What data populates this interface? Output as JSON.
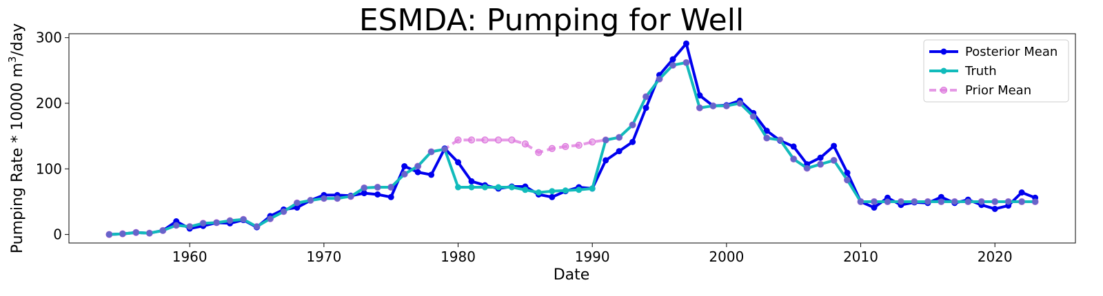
{
  "chart_data": {
    "type": "line",
    "title": "ESMDA: Pumping for Well",
    "xlabel": "Date",
    "ylabel_main": "Pumping Rate * 10000 m",
    "ylabel_sup": "3",
    "ylabel_tail": "/day",
    "xlim": [
      1951,
      2026
    ],
    "ylim": [
      -13,
      306
    ],
    "xticks": [
      1960,
      1970,
      1980,
      1990,
      2000,
      2010,
      2020
    ],
    "yticks": [
      0,
      100,
      200,
      300
    ],
    "legend_position": "top-right",
    "grid": false,
    "x": [
      1954,
      1955,
      1956,
      1957,
      1958,
      1959,
      1960,
      1961,
      1962,
      1963,
      1964,
      1965,
      1966,
      1967,
      1968,
      1969,
      1970,
      1971,
      1972,
      1973,
      1974,
      1975,
      1976,
      1977,
      1978,
      1979,
      1980,
      1981,
      1982,
      1983,
      1984,
      1985,
      1986,
      1987,
      1988,
      1989,
      1990,
      1991,
      1992,
      1993,
      1994,
      1995,
      1996,
      1997,
      1998,
      1999,
      2000,
      2001,
      2002,
      2003,
      2004,
      2005,
      2006,
      2007,
      2008,
      2009,
      2010,
      2011,
      2012,
      2013,
      2014,
      2015,
      2016,
      2017,
      2018,
      2019,
      2020,
      2021,
      2022,
      2023
    ],
    "series": [
      {
        "name": "Prior Mean",
        "color": "#dd77dd",
        "style": "dashed",
        "values": [
          0,
          1,
          3,
          2,
          6,
          14,
          12,
          17,
          18,
          21,
          23,
          12,
          24,
          35,
          48,
          52,
          55,
          55,
          58,
          71,
          72,
          72,
          92,
          104,
          126,
          130,
          144,
          144,
          144,
          144,
          144,
          138,
          125,
          131,
          134,
          136,
          141,
          144,
          148,
          167,
          210,
          237,
          258,
          262,
          193,
          196,
          196,
          200,
          180,
          147,
          144,
          115,
          101,
          107,
          113,
          83,
          50,
          50,
          50,
          50,
          50,
          50,
          50,
          50,
          50,
          50,
          50,
          50,
          50,
          50
        ]
      },
      {
        "name": "Posterior Mean",
        "color": "#0000ee",
        "style": "solid",
        "values": [
          0,
          1,
          3,
          2,
          6,
          20,
          9,
          13,
          18,
          17,
          22,
          11,
          28,
          38,
          41,
          52,
          60,
          60,
          59,
          63,
          61,
          57,
          104,
          95,
          91,
          131,
          110,
          81,
          75,
          70,
          73,
          73,
          61,
          57,
          66,
          72,
          70,
          113,
          127,
          141,
          193,
          243,
          267,
          291,
          212,
          196,
          197,
          204,
          185,
          158,
          143,
          134,
          107,
          117,
          135,
          94,
          50,
          41,
          56,
          45,
          49,
          48,
          57,
          48,
          53,
          45,
          39,
          44,
          64,
          56
        ]
      },
      {
        "name": "Truth",
        "color": "#11bbbb",
        "style": "solid",
        "values": [
          0,
          1,
          3,
          2,
          6,
          14,
          12,
          17,
          18,
          21,
          23,
          12,
          24,
          35,
          48,
          52,
          55,
          55,
          58,
          71,
          72,
          72,
          92,
          104,
          126,
          130,
          72,
          72,
          72,
          72,
          72,
          68,
          64,
          66,
          67,
          68,
          70,
          144,
          148,
          167,
          210,
          237,
          258,
          262,
          193,
          196,
          196,
          200,
          180,
          147,
          144,
          115,
          101,
          107,
          113,
          83,
          50,
          50,
          50,
          50,
          50,
          50,
          50,
          50,
          50,
          50,
          50,
          50,
          50,
          50
        ]
      }
    ],
    "legend": [
      "Posterior Mean",
      "Truth",
      "Prior Mean"
    ]
  }
}
